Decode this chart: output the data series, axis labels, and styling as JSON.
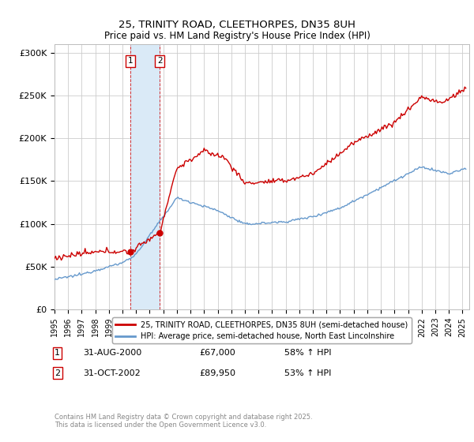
{
  "title": "25, TRINITY ROAD, CLEETHORPES, DN35 8UH",
  "subtitle": "Price paid vs. HM Land Registry's House Price Index (HPI)",
  "yticks": [
    0,
    50000,
    100000,
    150000,
    200000,
    250000,
    300000
  ],
  "ytick_labels": [
    "£0",
    "£50K",
    "£100K",
    "£150K",
    "£200K",
    "£250K",
    "£300K"
  ],
  "legend_line1": "25, TRINITY ROAD, CLEETHORPES, DN35 8UH (semi-detached house)",
  "legend_line2": "HPI: Average price, semi-detached house, North East Lincolnshire",
  "transaction1_date": "31-AUG-2000",
  "transaction1_price": "£67,000",
  "transaction1_hpi": "58% ↑ HPI",
  "transaction1_value": 67000,
  "transaction1_year": 2000.583,
  "transaction2_date": "31-OCT-2002",
  "transaction2_price": "£89,950",
  "transaction2_hpi": "53% ↑ HPI",
  "transaction2_value": 89950,
  "transaction2_year": 2002.75,
  "footnote": "Contains HM Land Registry data © Crown copyright and database right 2025.\nThis data is licensed under the Open Government Licence v3.0.",
  "line_color_red": "#cc0000",
  "line_color_blue": "#6699cc",
  "shade_color": "#daeaf7",
  "transaction_box_color": "#cc0000",
  "background_color": "#ffffff",
  "grid_color": "#cccccc"
}
